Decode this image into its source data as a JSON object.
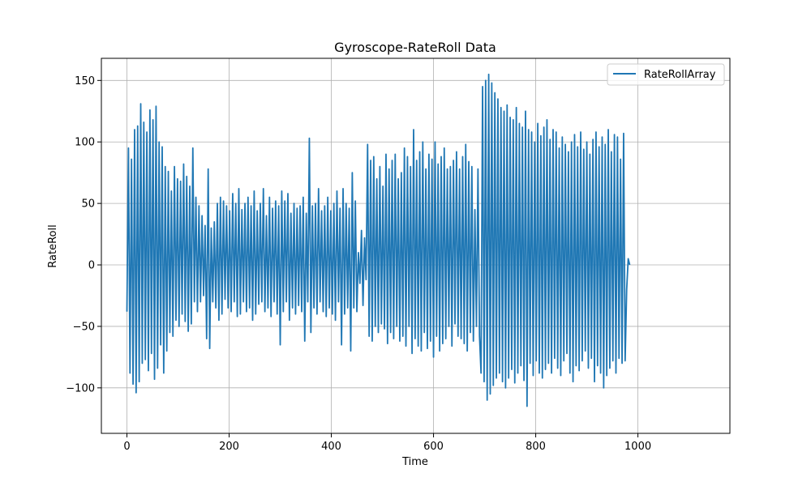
{
  "chart_data": {
    "type": "line",
    "title": "Gyroscope-RateRoll Data",
    "xlabel": "Time",
    "ylabel": "RateRoll",
    "xlim": [
      -50,
      1180
    ],
    "ylim": [
      -137,
      168
    ],
    "xticks": [
      0,
      200,
      400,
      600,
      800,
      1000
    ],
    "yticks": [
      -100,
      -50,
      0,
      50,
      100,
      150
    ],
    "xtick_labels": [
      "0",
      "200",
      "400",
      "600",
      "800",
      "1000"
    ],
    "ytick_labels": [
      "−100",
      "−50",
      "0",
      "50",
      "100",
      "150"
    ],
    "grid": true,
    "legend_position": "top-right",
    "colors": {
      "series": "#1f77b4",
      "grid": "#b0b0b0",
      "axis": "#000000"
    },
    "series": [
      {
        "name": "RateRollArray",
        "color": "#1f77b4",
        "x_start": 0,
        "x_step": 3,
        "y": [
          -38,
          95,
          -88,
          86,
          -97,
          110,
          -104,
          113,
          -95,
          131,
          -80,
          116,
          -77,
          108,
          -86,
          126,
          -72,
          118,
          -93,
          129,
          -84,
          100,
          -65,
          96,
          -88,
          80,
          -70,
          76,
          -55,
          60,
          -58,
          80,
          -45,
          70,
          -50,
          68,
          -40,
          82,
          -46,
          72,
          -54,
          64,
          -48,
          95,
          -30,
          55,
          -38,
          48,
          -30,
          40,
          -25,
          32,
          -60,
          78,
          -68,
          30,
          -30,
          35,
          -35,
          50,
          -45,
          55,
          -40,
          52,
          -28,
          48,
          -35,
          44,
          -38,
          58,
          -30,
          50,
          -42,
          62,
          -40,
          45,
          -30,
          50,
          -38,
          55,
          -35,
          48,
          -45,
          60,
          -40,
          44,
          -32,
          50,
          -30,
          62,
          -38,
          40,
          -35,
          55,
          -42,
          46,
          -30,
          52,
          -40,
          48,
          -65,
          60,
          -38,
          52,
          -30,
          58,
          -45,
          42,
          -35,
          50,
          -40,
          46,
          -33,
          48,
          -38,
          55,
          -62,
          42,
          -30,
          103,
          -55,
          48,
          -35,
          50,
          -40,
          62,
          -30,
          44,
          -38,
          48,
          -42,
          55,
          -35,
          44,
          -40,
          50,
          -45,
          60,
          -30,
          46,
          -65,
          62,
          -40,
          50,
          -35,
          46,
          -70,
          75,
          -35,
          52,
          -38,
          10,
          -15,
          28,
          -33,
          22,
          -12,
          98,
          -58,
          85,
          -62,
          88,
          -50,
          70,
          -55,
          80,
          -48,
          64,
          -52,
          90,
          -64,
          78,
          -55,
          85,
          -60,
          90,
          -50,
          70,
          -62,
          75,
          -58,
          95,
          -66,
          88,
          -50,
          80,
          -72,
          110,
          -60,
          85,
          -66,
          92,
          -70,
          100,
          -55,
          78,
          -68,
          90,
          -62,
          86,
          -75,
          100,
          -58,
          82,
          -70,
          88,
          -64,
          95,
          -60,
          78,
          -50,
          80,
          -66,
          85,
          -48,
          92,
          -58,
          78,
          -60,
          88,
          -64,
          98,
          -70,
          84,
          -55,
          80,
          -62,
          45,
          -50,
          78,
          -58,
          -88,
          145,
          -95,
          150,
          -110,
          155,
          -105,
          148,
          -98,
          140,
          -92,
          135,
          -88,
          128,
          -95,
          125,
          -100,
          130,
          -92,
          120,
          -85,
          118,
          -96,
          128,
          -88,
          115,
          -82,
          112,
          -94,
          125,
          -115,
          110,
          -80,
          108,
          -90,
          100,
          -78,
          115,
          -88,
          105,
          -92,
          112,
          -85,
          118,
          -80,
          102,
          -88,
          110,
          -76,
          108,
          -84,
          95,
          -90,
          104,
          -78,
          98,
          -72,
          92,
          -88,
          100,
          -95,
          106,
          -82,
          96,
          -86,
          108,
          -78,
          94,
          -70,
          100,
          -84,
          90,
          -76,
          102,
          -95,
          108,
          -82,
          96,
          -88,
          104,
          -100,
          98,
          -90,
          110,
          -84,
          92,
          -78,
          106,
          -88,
          104,
          -76,
          86,
          -80,
          107,
          -78,
          -20,
          5,
          0
        ]
      }
    ]
  }
}
